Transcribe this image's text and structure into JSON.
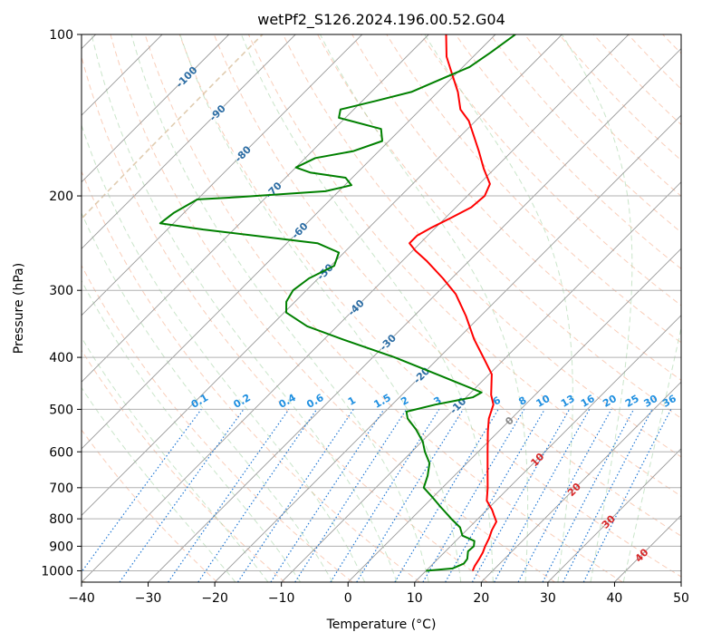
{
  "chart_data": {
    "type": "line",
    "title": "wetPf2_S126.2024.196.00.52.G04",
    "xlabel": "Temperature (°C)",
    "ylabel": "Pressure (hPa)",
    "xlim": [
      -40,
      50
    ],
    "ylim": [
      1050,
      100
    ],
    "y_scale": "log",
    "grid": true,
    "x_ticks": [
      "−40",
      "−30",
      "−20",
      "−10",
      "0",
      "10",
      "20",
      "30",
      "40",
      "50"
    ],
    "y_ticks": [
      "100",
      "200",
      "300",
      "400",
      "500",
      "600",
      "700",
      "800",
      "900",
      "1000"
    ],
    "x_tick_values": [
      -40,
      -30,
      -20,
      -10,
      0,
      10,
      20,
      30,
      40,
      50
    ],
    "y_tick_values": [
      100,
      200,
      300,
      400,
      500,
      600,
      700,
      800,
      900,
      1000
    ],
    "skew": 45,
    "isotherms": [
      -150,
      -140,
      -130,
      -120,
      -110,
      -100,
      -90,
      -80,
      -70,
      -60,
      -50,
      -40,
      -30,
      -20,
      -10,
      0,
      10,
      20,
      30,
      40,
      50
    ],
    "mixing_ratio_lines": [
      {
        "label": "0.1",
        "value": 0.1
      },
      {
        "label": "0.2",
        "value": 0.2
      },
      {
        "label": "0.4",
        "value": 0.4
      },
      {
        "label": "0.6",
        "value": 0.6
      },
      {
        "label": "1",
        "value": 1
      },
      {
        "label": "1.5",
        "value": 1.5
      },
      {
        "label": "2",
        "value": 2
      },
      {
        "label": "3",
        "value": 3
      },
      {
        "label": "4",
        "value": 4
      },
      {
        "label": "6",
        "value": 6
      },
      {
        "label": "8",
        "value": 8
      },
      {
        "label": "10",
        "value": 10
      },
      {
        "label": "13",
        "value": 13
      },
      {
        "label": "16",
        "value": 16
      },
      {
        "label": "20",
        "value": 20
      },
      {
        "label": "25",
        "value": 25
      },
      {
        "label": "30",
        "value": 30
      },
      {
        "label": "36",
        "value": 36
      }
    ],
    "moist_adiabat_labels": [
      {
        "label": "-100",
        "temp": -100,
        "pressure": 120
      },
      {
        "label": "-90",
        "temp": -90,
        "pressure": 140
      },
      {
        "label": "-80",
        "temp": -80,
        "pressure": 167
      },
      {
        "label": "-70",
        "temp": -70,
        "pressure": 195
      },
      {
        "label": "-60",
        "temp": -60,
        "pressure": 232
      },
      {
        "label": "-50",
        "temp": -50,
        "pressure": 277
      },
      {
        "label": "-40",
        "temp": -40,
        "pressure": 323
      },
      {
        "label": "-30",
        "temp": -30,
        "pressure": 375
      },
      {
        "label": "-20",
        "temp": -20,
        "pressure": 432
      },
      {
        "label": "-10",
        "temp": -10,
        "pressure": 492
      }
    ],
    "dry_adiabat_labels": [
      {
        "label": "0",
        "temp": 0,
        "pressure": 525
      },
      {
        "label": "10",
        "temp": 10,
        "pressure": 620
      },
      {
        "label": "20",
        "temp": 20,
        "pressure": 705
      },
      {
        "label": "30",
        "temp": 30,
        "pressure": 810
      },
      {
        "label": "40",
        "temp": 40,
        "pressure": 935
      }
    ],
    "series": [
      {
        "key": "temperature",
        "color": "#ff0000",
        "points": [
          [
            17.0,
            1000
          ],
          [
            16.6,
            980
          ],
          [
            16.2,
            950
          ],
          [
            15.8,
            925
          ],
          [
            15.2,
            900
          ],
          [
            14.6,
            870
          ],
          [
            13.8,
            840
          ],
          [
            13.2,
            810
          ],
          [
            12.0,
            790
          ],
          [
            10.8,
            770
          ],
          [
            8.6,
            740
          ],
          [
            6.8,
            700
          ],
          [
            4.2,
            650
          ],
          [
            1.4,
            600
          ],
          [
            -1.6,
            550
          ],
          [
            -3.4,
            520
          ],
          [
            -4.8,
            490
          ],
          [
            -6.6,
            470
          ],
          [
            -9.6,
            430
          ],
          [
            -13.4,
            400
          ],
          [
            -17.5,
            370
          ],
          [
            -22.2,
            335
          ],
          [
            -27.0,
            305
          ],
          [
            -31.3,
            285
          ],
          [
            -36.2,
            265
          ],
          [
            -39.6,
            253
          ],
          [
            -41.6,
            245
          ],
          [
            -41.6,
            237
          ],
          [
            -40.6,
            229
          ],
          [
            -39.2,
            220
          ],
          [
            -37.7,
            210
          ],
          [
            -37.4,
            200
          ],
          [
            -38.4,
            190
          ],
          [
            -41.6,
            178
          ],
          [
            -45.0,
            165
          ],
          [
            -48.5,
            153
          ],
          [
            -51.0,
            145
          ],
          [
            -54.0,
            138
          ],
          [
            -57.0,
            128
          ],
          [
            -60.0,
            120
          ],
          [
            -64.0,
            110
          ],
          [
            -67.4,
            100
          ]
        ]
      },
      {
        "key": "dewpoint",
        "color": "#008000",
        "points": [
          [
            10.0,
            1000
          ],
          [
            13.6,
            990
          ],
          [
            14.6,
            970
          ],
          [
            14.4,
            950
          ],
          [
            13.4,
            920
          ],
          [
            13.5,
            900
          ],
          [
            12.8,
            880
          ],
          [
            10.2,
            860
          ],
          [
            8.6,
            830
          ],
          [
            6.0,
            800
          ],
          [
            2.6,
            760
          ],
          [
            0.0,
            730
          ],
          [
            -2.8,
            700
          ],
          [
            -4.0,
            665
          ],
          [
            -5.6,
            630
          ],
          [
            -8.0,
            600
          ],
          [
            -9.8,
            575
          ],
          [
            -12.7,
            545
          ],
          [
            -15.6,
            520
          ],
          [
            -16.8,
            505
          ],
          [
            -13.5,
            490
          ],
          [
            -9.0,
            475
          ],
          [
            -8.4,
            465
          ],
          [
            -16.5,
            435
          ],
          [
            -26.7,
            400
          ],
          [
            -37.3,
            370
          ],
          [
            -44.5,
            350
          ],
          [
            -49.7,
            330
          ],
          [
            -51.3,
            315
          ],
          [
            -52.0,
            300
          ],
          [
            -51.4,
            285
          ],
          [
            -49.5,
            270
          ],
          [
            -50.8,
            255
          ],
          [
            -55.4,
            245
          ],
          [
            -74.6,
            231
          ],
          [
            -82.0,
            225
          ],
          [
            -81.5,
            215
          ],
          [
            -80.0,
            203
          ],
          [
            -74.0,
            201
          ],
          [
            -62.0,
            196
          ],
          [
            -59.0,
            191
          ],
          [
            -61.0,
            185
          ],
          [
            -67.0,
            181
          ],
          [
            -70.0,
            177
          ],
          [
            -68.5,
            170
          ],
          [
            -63.8,
            165
          ],
          [
            -61.0,
            158
          ],
          [
            -63.0,
            150
          ],
          [
            -71.0,
            143
          ],
          [
            -72.0,
            138
          ],
          [
            -68.0,
            133
          ],
          [
            -64.0,
            128
          ],
          [
            -61.0,
            120
          ],
          [
            -59.0,
            115
          ],
          [
            -58.0,
            108
          ],
          [
            -57.0,
            100
          ]
        ]
      }
    ]
  }
}
